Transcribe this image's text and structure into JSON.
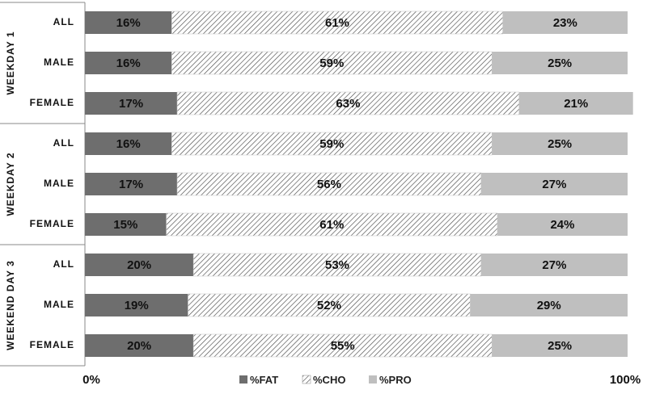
{
  "chart_data": {
    "type": "bar",
    "stacked": true,
    "orientation": "horizontal",
    "percent_axis": true,
    "groups": [
      {
        "label": "WEEKDAY 1",
        "categories": [
          "ALL",
          "MALE",
          "FEMALE"
        ]
      },
      {
        "label": "WEEKDAY 2",
        "categories": [
          "ALL",
          "MALE",
          "FEMALE"
        ]
      },
      {
        "label": "WEEKEND DAY 3",
        "categories": [
          "ALL",
          "MALE",
          "FEMALE"
        ]
      }
    ],
    "series": [
      {
        "name": "%FAT",
        "color": "#6e6e6e",
        "pattern": "solid",
        "values": [
          16,
          16,
          17,
          16,
          17,
          15,
          20,
          19,
          20
        ],
        "labels": [
          "16%",
          "16%",
          "17%",
          "16%",
          "17%",
          "15%",
          "20%",
          "19%",
          "20%"
        ]
      },
      {
        "name": "%CHO",
        "color": "#ffffff",
        "pattern": "diagonal-hatch",
        "values": [
          61,
          59,
          63,
          59,
          56,
          61,
          53,
          52,
          55
        ],
        "labels": [
          "61%",
          "59%",
          "63%",
          "59%",
          "56%",
          "61%",
          "53%",
          "52%",
          "55%"
        ]
      },
      {
        "name": "%PRO",
        "color": "#bfbfbf",
        "pattern": "solid",
        "values": [
          23,
          25,
          21,
          25,
          27,
          24,
          27,
          29,
          25
        ],
        "labels": [
          "23%",
          "25%",
          "21%",
          "25%",
          "27%",
          "24%",
          "27%",
          "29%",
          "25%"
        ]
      }
    ],
    "xlim": [
      0,
      100
    ],
    "xticks": [
      "0%",
      "100%"
    ],
    "legend_position": "bottom",
    "grid": false
  }
}
